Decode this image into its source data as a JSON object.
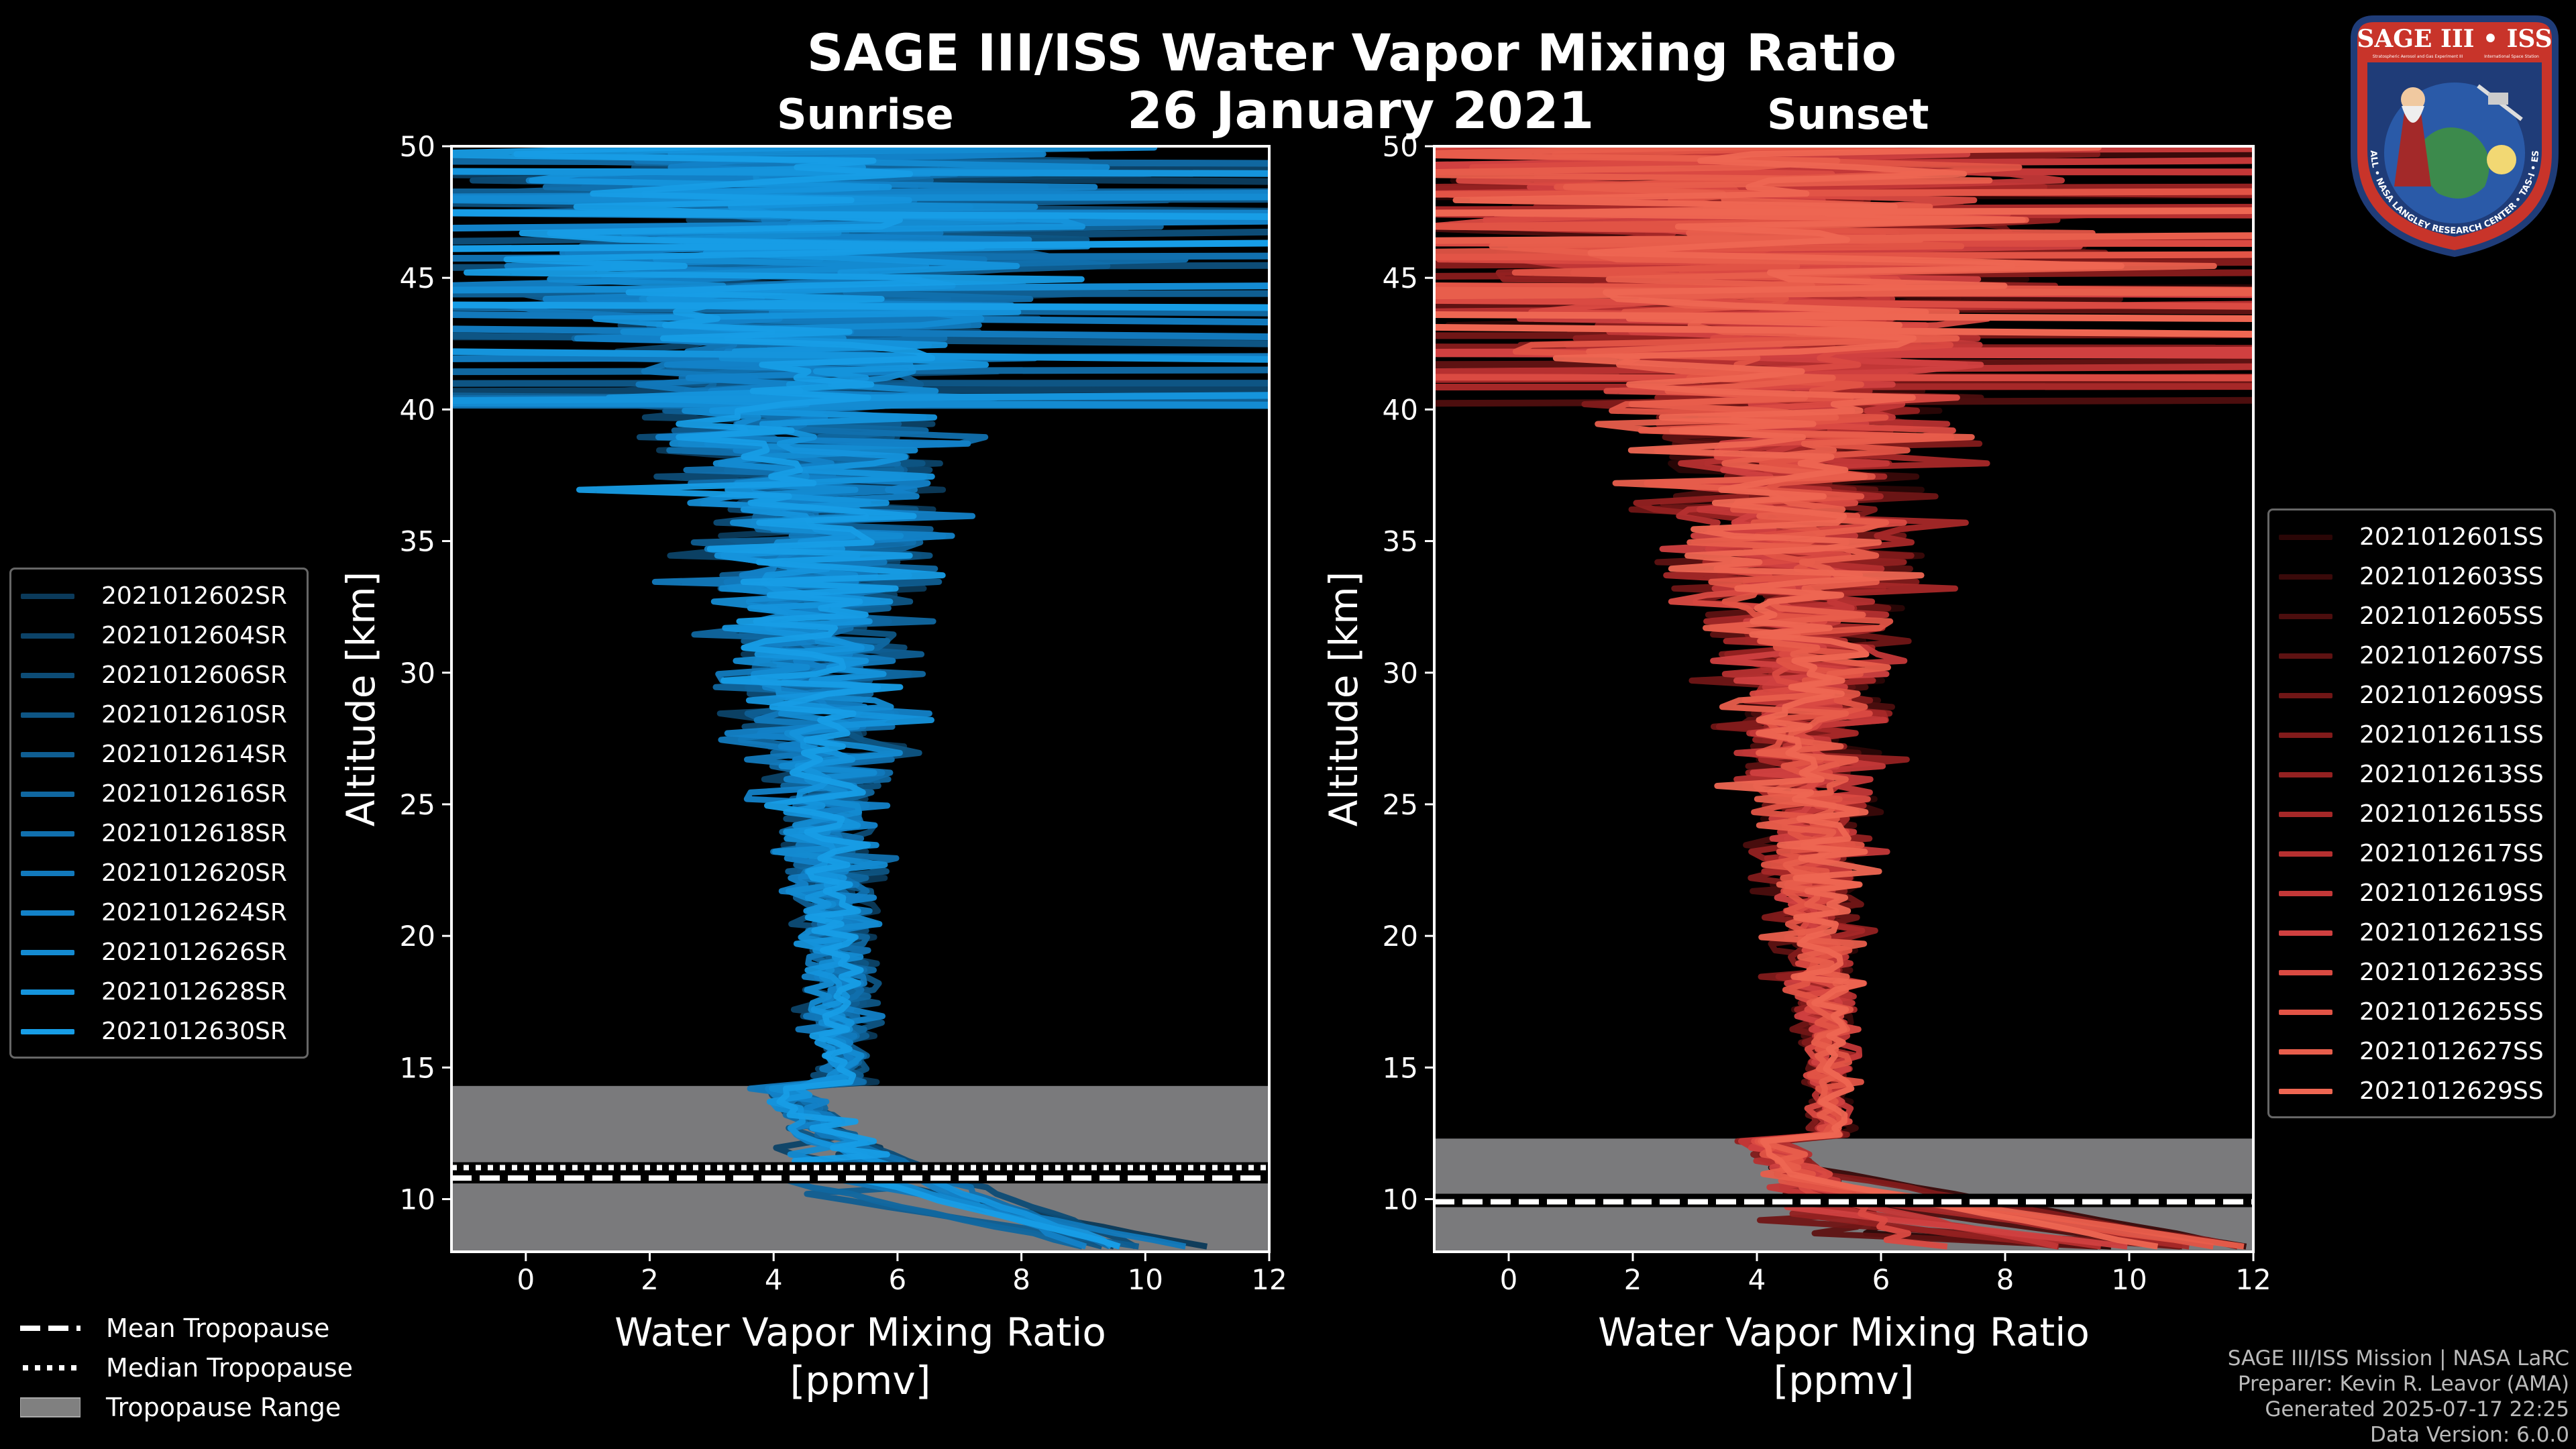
{
  "title": "SAGE III/ISS Water Vapor Mixing Ratio",
  "date": "26 January 2021",
  "panels": {
    "sunrise_title": "Sunrise",
    "sunset_title": "Sunset"
  },
  "chart_data": [
    {
      "type": "line",
      "name": "Sunrise",
      "xlabel": "Water Vapor Mixing Ratio [ppmv]",
      "ylabel": "Altitude [km]",
      "xlim": [
        -1.2,
        12
      ],
      "ylim": [
        8,
        50
      ],
      "xticks": [
        0,
        2,
        4,
        6,
        8,
        10,
        12
      ],
      "yticks": [
        10,
        15,
        20,
        25,
        30,
        35,
        40,
        45,
        50
      ],
      "tropopause": {
        "mean": 10.8,
        "median": 11.2,
        "min": 8,
        "max": 14.3
      },
      "series": [
        {
          "name": "2021012602SR",
          "color": "#0b3a5a"
        },
        {
          "name": "2021012604SR",
          "color": "#0c4368"
        },
        {
          "name": "2021012606SR",
          "color": "#0d4c76"
        },
        {
          "name": "2021012610SR",
          "color": "#0e5584"
        },
        {
          "name": "2021012614SR",
          "color": "#0f5e92"
        },
        {
          "name": "2021012616SR",
          "color": "#1067a0"
        },
        {
          "name": "2021012618SR",
          "color": "#1170ae"
        },
        {
          "name": "2021012620SR",
          "color": "#1279bc"
        },
        {
          "name": "2021012624SR",
          "color": "#1382c8"
        },
        {
          "name": "2021012626SR",
          "color": "#148bd2"
        },
        {
          "name": "2021012628SR",
          "color": "#1594dc"
        },
        {
          "name": "2021012630SR",
          "color": "#179de6"
        }
      ]
    },
    {
      "type": "line",
      "name": "Sunset",
      "xlabel": "Water Vapor Mixing Ratio [ppmv]",
      "ylabel": "Altitude [km]",
      "xlim": [
        -1.2,
        12
      ],
      "ylim": [
        8,
        50
      ],
      "xticks": [
        0,
        2,
        4,
        6,
        8,
        10,
        12
      ],
      "yticks": [
        10,
        15,
        20,
        25,
        30,
        35,
        40,
        45,
        50
      ],
      "tropopause": {
        "mean": 9.9,
        "median": 10.0,
        "min": 8,
        "max": 12.3
      },
      "series": [
        {
          "name": "2021012601SS",
          "color": "#2a0606"
        },
        {
          "name": "2021012603SS",
          "color": "#3a0a0a"
        },
        {
          "name": "2021012605SS",
          "color": "#4c0e0e"
        },
        {
          "name": "2021012607SS",
          "color": "#5e1212"
        },
        {
          "name": "2021012609SS",
          "color": "#701616"
        },
        {
          "name": "2021012611SS",
          "color": "#821b1b"
        },
        {
          "name": "2021012613SS",
          "color": "#942121"
        },
        {
          "name": "2021012615SS",
          "color": "#a62828"
        },
        {
          "name": "2021012617SS",
          "color": "#b63030"
        },
        {
          "name": "2021012619SS",
          "color": "#c43838"
        },
        {
          "name": "2021012621SS",
          "color": "#d04040"
        },
        {
          "name": "2021012623SS",
          "color": "#da4a42"
        },
        {
          "name": "2021012625SS",
          "color": "#e25446"
        },
        {
          "name": "2021012627SS",
          "color": "#e85e4c"
        },
        {
          "name": "2021012629SS",
          "color": "#ee6652"
        }
      ]
    }
  ],
  "trop_legend": {
    "mean": "Mean Tropopause",
    "median": "Median Tropopause",
    "range": "Tropopause Range"
  },
  "credits": {
    "line1": "SAGE III/ISS Mission | NASA LaRC",
    "line2": "Preparer: Kevin R. Leavor (AMA)",
    "line3": "Generated 2025-07-17 22:25",
    "line4": "Data Version: 6.0.0"
  },
  "logo": {
    "top": "SAGE III • ISS",
    "subtitle": "Stratospheric Aerosol and Gas Experiment III",
    "side": "International Space Station",
    "ring": "BALL • NASA LANGLEY RESEARCH CENTER • TAS-I • ESA"
  }
}
